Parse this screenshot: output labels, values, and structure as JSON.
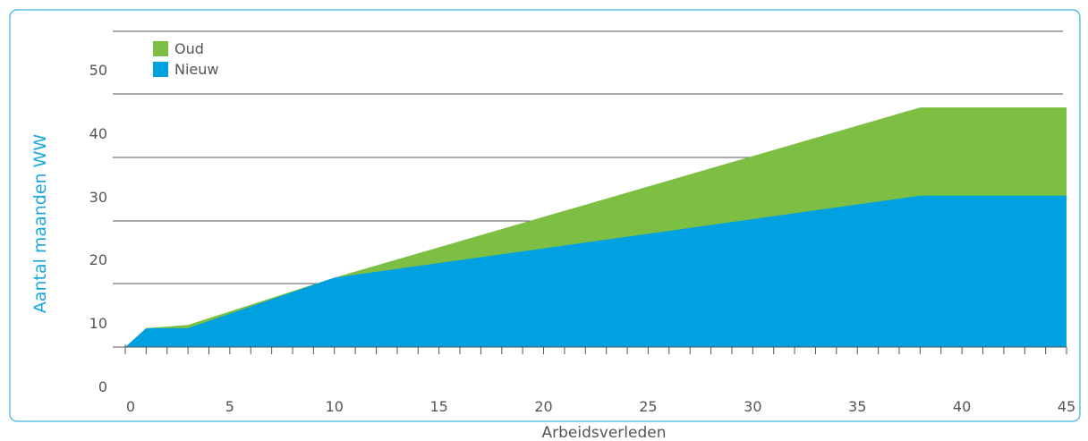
{
  "chart_data": {
    "type": "area",
    "title": "",
    "xlabel": "Arbeidsverleden",
    "ylabel": "Aantal maanden WW",
    "xlim": [
      0,
      45
    ],
    "ylim": [
      0,
      55
    ],
    "xticks": [
      0,
      5,
      10,
      15,
      20,
      25,
      30,
      35,
      40,
      45
    ],
    "yticks": [
      0,
      10,
      20,
      30,
      40,
      50
    ],
    "grid": "horizontal",
    "legend": "top-left",
    "series": [
      {
        "name": "Oud",
        "color": "#7cbf42",
        "x": [
          0,
          1,
          3,
          10,
          38,
          45
        ],
        "y": [
          3,
          6,
          6.5,
          14,
          41,
          41
        ]
      },
      {
        "name": "Nieuw",
        "color": "#00a1e1",
        "x": [
          0,
          1,
          3,
          10,
          38,
          45
        ],
        "y": [
          3,
          6,
          6,
          14,
          27,
          27
        ]
      }
    ]
  },
  "colors": {
    "frame": "#3db1e0",
    "ylabel": "#1aa7e0",
    "grid": "#555555"
  }
}
